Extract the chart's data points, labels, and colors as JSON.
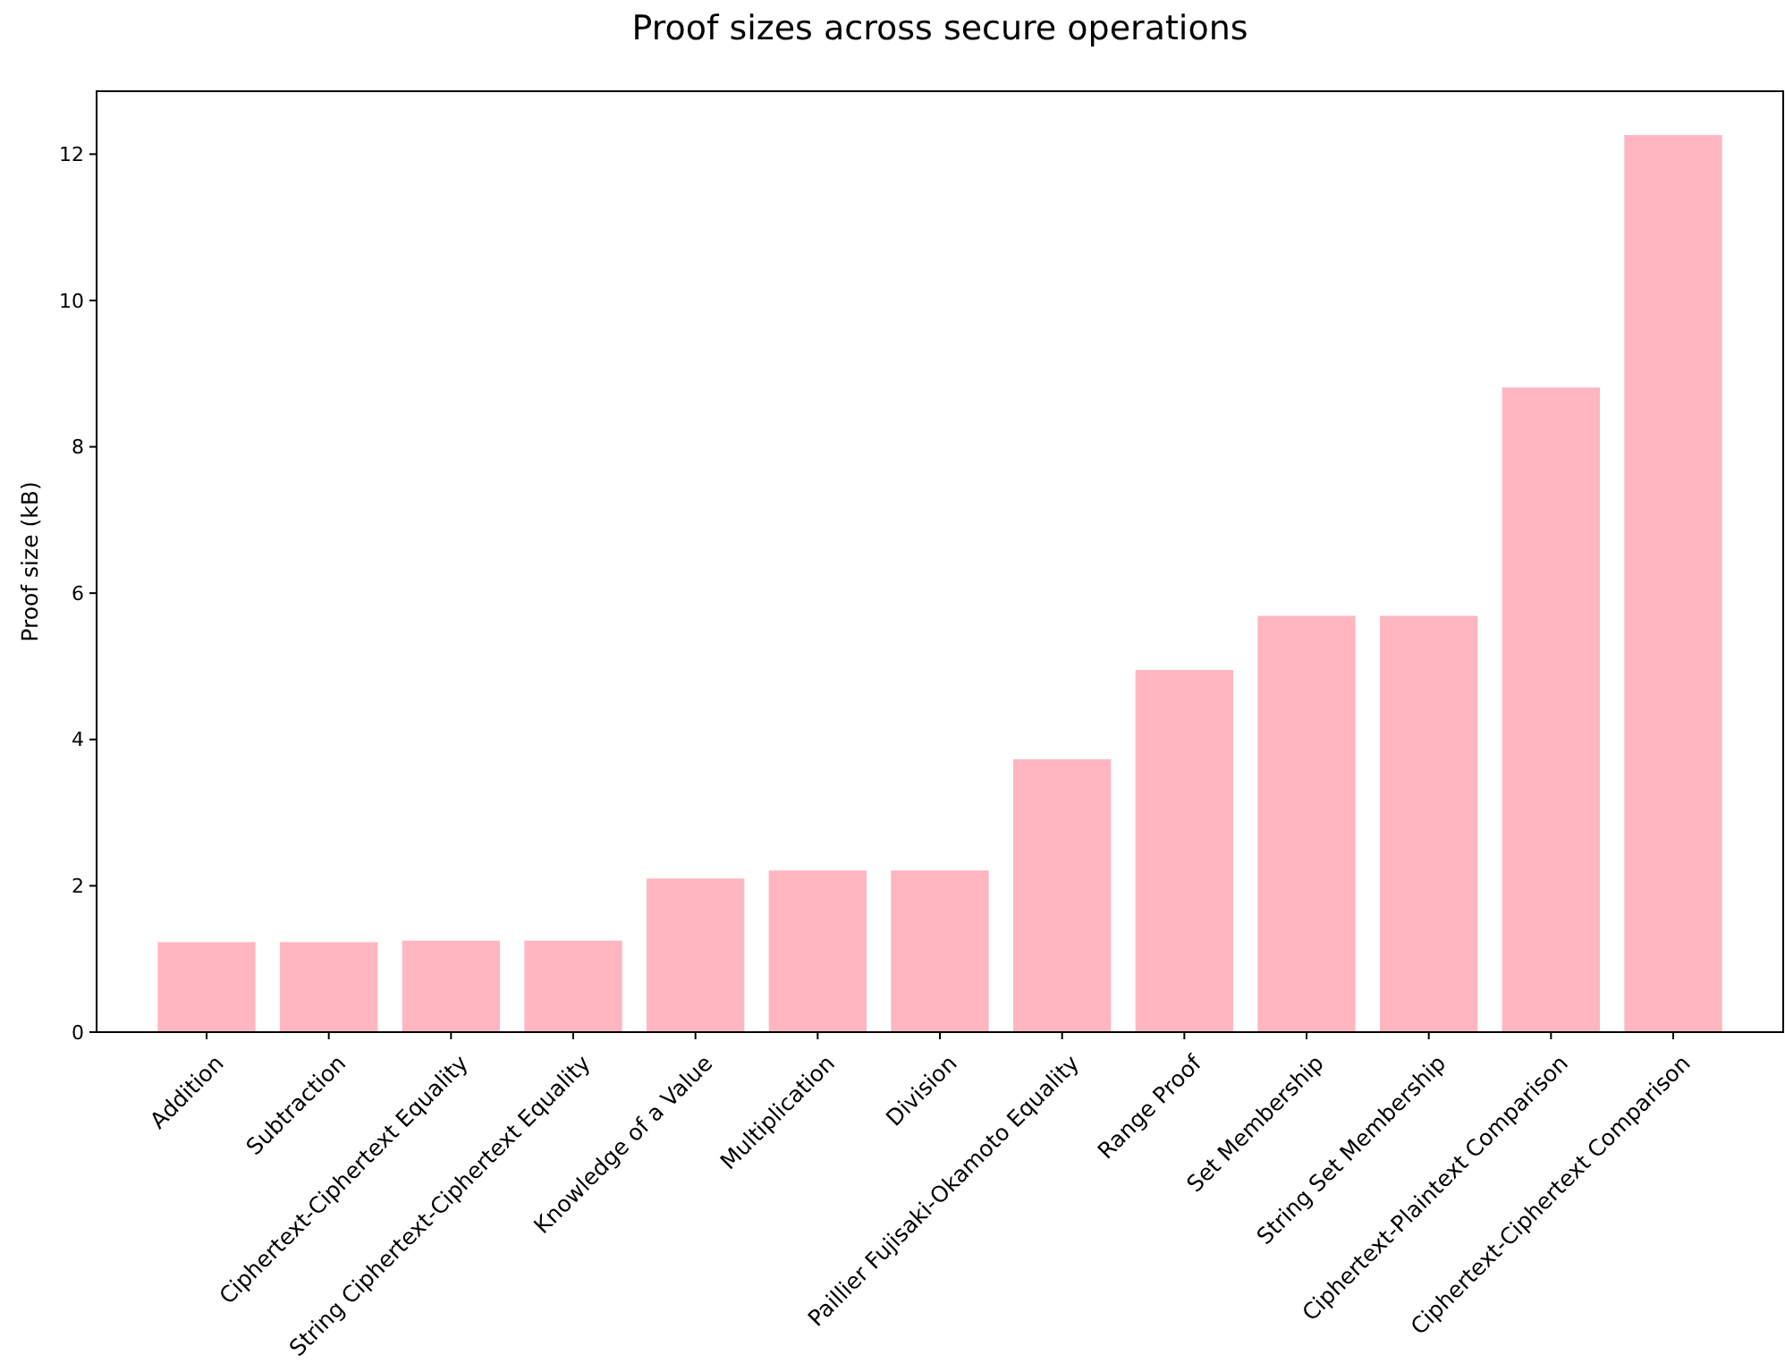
{
  "chart_data": {
    "type": "bar",
    "title": "Proof sizes across secure operations",
    "ylabel": "Proof size (kB)",
    "categories": [
      "Addition",
      "Subtraction",
      "Ciphertext-Ciphertext Equality",
      "String Ciphertext-Ciphertext Equality",
      "Knowledge of a Value",
      "Multiplication",
      "Division",
      "Paillier Fujisaki-Okamoto Equality",
      "Range Proof",
      "Set Membership",
      "String Set Membership",
      "Ciphertext-Plaintext Comparison",
      "Ciphertext-Ciphertext Comparison"
    ],
    "values": [
      1.23,
      1.23,
      1.25,
      1.25,
      2.1,
      2.21,
      2.21,
      3.73,
      4.95,
      5.69,
      5.69,
      8.81,
      12.26
    ],
    "color": "#ffb6c1",
    "ylim": [
      0,
      12.86
    ],
    "yticks": [
      0,
      2,
      4,
      6,
      8,
      10,
      12
    ],
    "grid": false
  }
}
